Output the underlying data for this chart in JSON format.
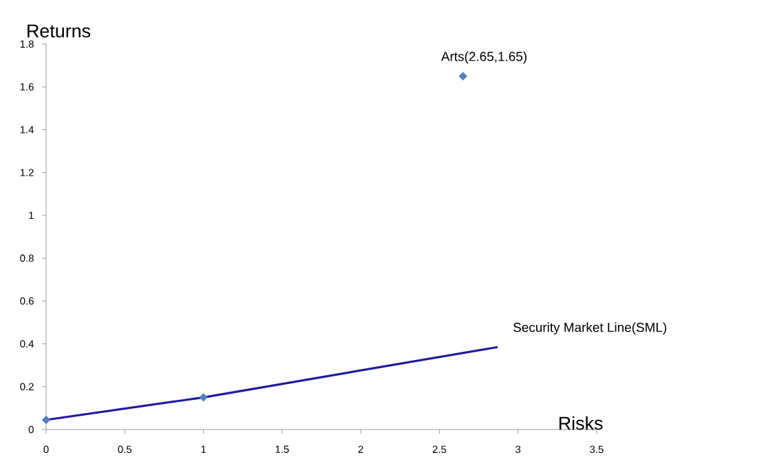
{
  "chart_data": {
    "type": "scatter",
    "xlabel": "Risks",
    "ylabel": "Returns",
    "xlim": [
      0,
      3.5
    ],
    "ylim": [
      0,
      1.8
    ],
    "xticks": [
      0,
      0.5,
      1,
      1.5,
      2,
      2.5,
      3,
      3.5
    ],
    "yticks": [
      0,
      0.2,
      0.4,
      0.6,
      0.8,
      1,
      1.2,
      1.4,
      1.6,
      1.8
    ],
    "series": [
      {
        "type": "line",
        "color": "#1f1a9e",
        "marker": "none",
        "x": [
          0,
          1,
          2.87
        ],
        "values": [
          0.045,
          0.15,
          0.385
        ]
      },
      {
        "type": "scatter",
        "color": "#4f81bd",
        "marker": "diamond",
        "x": [
          0,
          1,
          2.65
        ],
        "values": [
          0.045,
          0.15,
          1.65
        ]
      }
    ],
    "annotations": [
      {
        "text": "Arts(2.65,1.65)",
        "x": 2.65,
        "y": 1.65
      },
      {
        "text": "Security Market Line(SML)",
        "x": 2.87,
        "y": 0.385
      }
    ]
  }
}
